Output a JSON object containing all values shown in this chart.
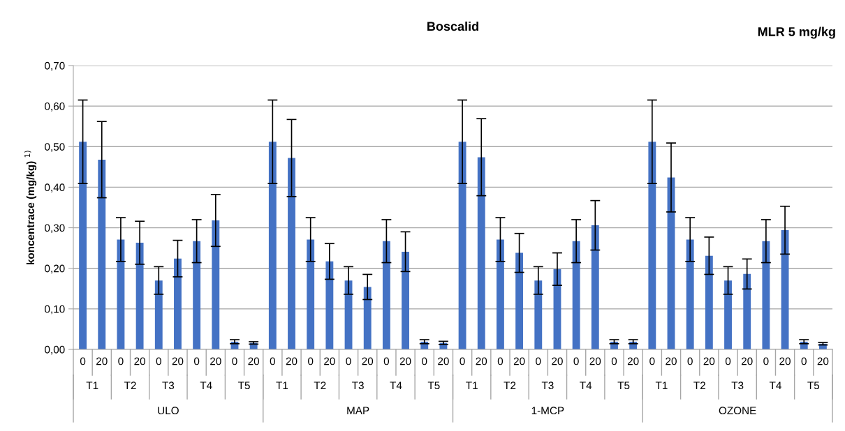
{
  "chart_data": {
    "type": "bar",
    "title": "Boscalid",
    "subtitle": "MLR 5 mg/kg",
    "ylabel": "koncentrace (mg/kg) $^{1)}$",
    "categories": [
      "0",
      "20",
      "0",
      "20",
      "0",
      "20",
      "0",
      "20",
      "0",
      "20",
      "0",
      "20",
      "0",
      "20",
      "0",
      "20",
      "0",
      "20",
      "0",
      "20",
      "0",
      "20",
      "0",
      "20",
      "0",
      "20",
      "0",
      "20",
      "0",
      "20",
      "0",
      "20",
      "0",
      "20",
      "0",
      "20",
      "0",
      "20",
      "0",
      "20"
    ],
    "values": [
      0.512,
      0.468,
      0.271,
      0.263,
      0.17,
      0.224,
      0.267,
      0.318,
      0.019,
      0.016,
      0.512,
      0.472,
      0.271,
      0.217,
      0.17,
      0.154,
      0.267,
      0.241,
      0.019,
      0.016,
      0.512,
      0.474,
      0.271,
      0.238,
      0.17,
      0.198,
      0.267,
      0.306,
      0.019,
      0.019,
      0.512,
      0.424,
      0.271,
      0.231,
      0.17,
      0.186,
      0.267,
      0.294,
      0.019,
      0.014
    ],
    "errors": [
      0.103,
      0.094,
      0.054,
      0.053,
      0.034,
      0.045,
      0.053,
      0.064,
      0.005,
      0.003,
      0.103,
      0.095,
      0.054,
      0.044,
      0.034,
      0.031,
      0.053,
      0.049,
      0.005,
      0.004,
      0.103,
      0.095,
      0.054,
      0.048,
      0.034,
      0.04,
      0.053,
      0.061,
      0.005,
      0.005,
      0.103,
      0.085,
      0.054,
      0.046,
      0.034,
      0.037,
      0.053,
      0.059,
      0.005,
      0.003
    ],
    "color": "#4472c4",
    "ylim": [
      0,
      0.7
    ],
    "yticks": [
      {
        "value": 0,
        "label": "0,00"
      },
      {
        "value": 0.1,
        "label": "0,10"
      },
      {
        "value": 0.2,
        "label": "0,20"
      },
      {
        "value": 0.3,
        "label": "0,30"
      },
      {
        "value": 0.4,
        "label": "0,40"
      },
      {
        "value": 0.5,
        "label": "0,50"
      },
      {
        "value": 0.6,
        "label": "0,60"
      },
      {
        "value": 0.7,
        "label": "0,70"
      }
    ],
    "grid": "y",
    "annotations": [
      "T1",
      "T2",
      "T3",
      "T4",
      "T5",
      "T1",
      "T2",
      "T3",
      "T4",
      "T5",
      "T1",
      "T2",
      "T3",
      "T4",
      "T5",
      "T1",
      "T2",
      "T3",
      "T4",
      "T5",
      "ULO",
      "MAP",
      "1-MCP",
      "OZONE"
    ]
  }
}
